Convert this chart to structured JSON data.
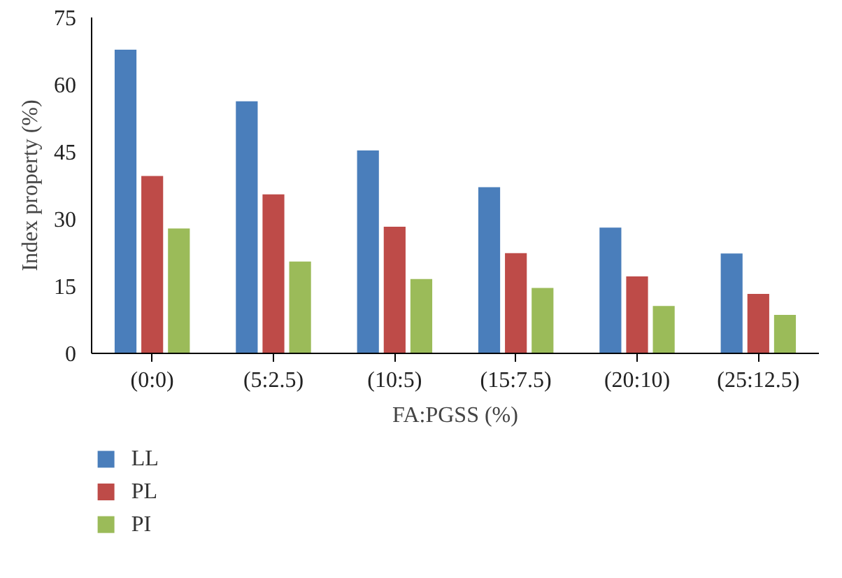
{
  "chart_data": {
    "type": "bar",
    "xlabel": "FA:PGSS (%)",
    "ylabel": "Index property (%)",
    "categories": [
      "(0:0)",
      "(5:2.5)",
      "(10:5)",
      "(15:7.5)",
      "(20:10)",
      "(25:12.5)"
    ],
    "series": [
      {
        "name": "LL",
        "color": "#4a7ebb",
        "values": [
          67.8,
          56.3,
          45.3,
          37.1,
          28.1,
          22.3
        ]
      },
      {
        "name": "PL",
        "color": "#be4b48",
        "values": [
          39.6,
          35.5,
          28.3,
          22.4,
          17.2,
          13.3
        ]
      },
      {
        "name": "PI",
        "color": "#9bbb59",
        "values": [
          27.9,
          20.5,
          16.6,
          14.6,
          10.6,
          8.6
        ]
      }
    ],
    "ylim": [
      0,
      75
    ],
    "yticks": [
      0,
      15,
      30,
      45,
      60,
      75
    ],
    "grid": false,
    "legend": "bottom left"
  }
}
